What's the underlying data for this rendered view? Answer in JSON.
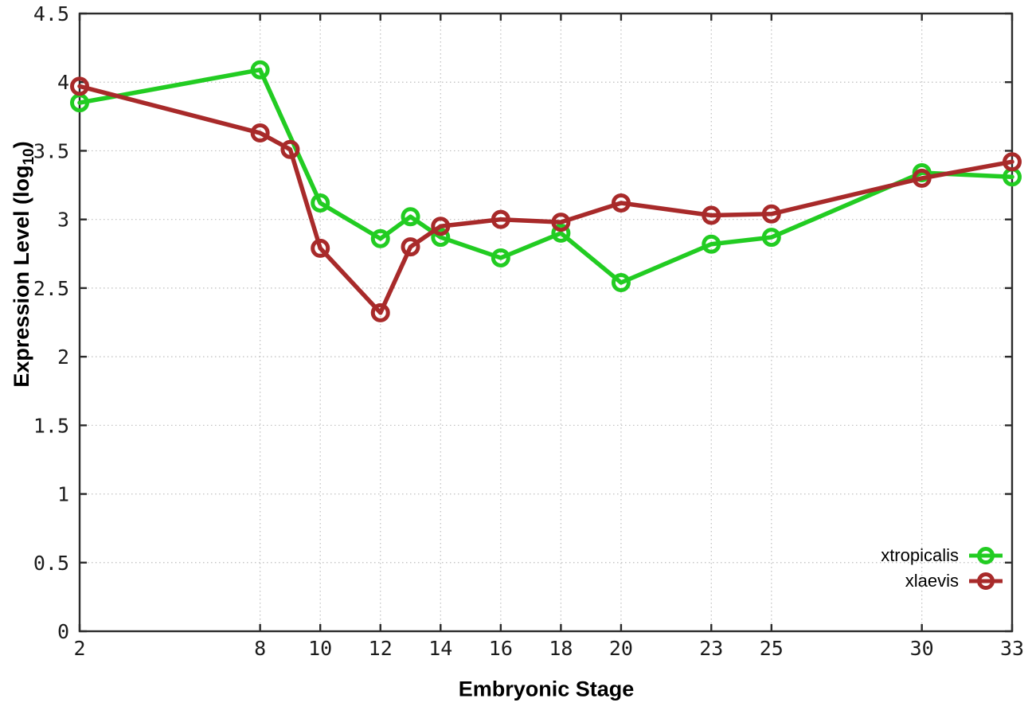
{
  "page": {
    "background": "#ffffff"
  },
  "axis": {
    "xlabel": "Embryonic Stage",
    "ylabel_prefix": "Expression Level (log",
    "ylabel_sub": "10",
    "ylabel_suffix": ")"
  },
  "colors": {
    "xtropicalis": "#22cc22",
    "xlaevis": "#a82a2a",
    "border": "#2b2b2b",
    "grid": "#bdbdbd",
    "tick_text": "#1c1c1c"
  },
  "chart_data": {
    "type": "line",
    "title": "",
    "xlabel": "Embryonic Stage",
    "ylabel": "Expression Level (log10)",
    "xlim": [
      2,
      33
    ],
    "ylim": [
      0,
      4.5
    ],
    "x_ticks": [
      2,
      8,
      10,
      12,
      14,
      16,
      18,
      20,
      23,
      25,
      30,
      33
    ],
    "y_ticks": [
      0,
      0.5,
      1,
      1.5,
      2,
      2.5,
      3,
      3.5,
      4,
      4.5
    ],
    "grid": true,
    "grid_style": "dotted",
    "legend_position": "bottom-right-inside",
    "marker": "open-circle",
    "series": [
      {
        "name": "xtropicalis",
        "color": "#22cc22",
        "x": [
          2,
          8,
          10,
          12,
          13,
          14,
          16,
          18,
          20,
          23,
          25,
          30,
          33
        ],
        "y": [
          3.85,
          4.09,
          3.12,
          2.86,
          3.02,
          2.87,
          2.72,
          2.9,
          2.54,
          2.82,
          2.87,
          3.34,
          3.31
        ]
      },
      {
        "name": "xlaevis",
        "color": "#a82a2a",
        "x": [
          2,
          8,
          9,
          10,
          12,
          13,
          14,
          16,
          18,
          20,
          23,
          25,
          30,
          33
        ],
        "y": [
          3.97,
          3.63,
          3.51,
          2.79,
          2.32,
          2.8,
          2.95,
          3.0,
          2.98,
          3.12,
          3.03,
          3.04,
          3.3,
          3.42
        ]
      }
    ]
  }
}
